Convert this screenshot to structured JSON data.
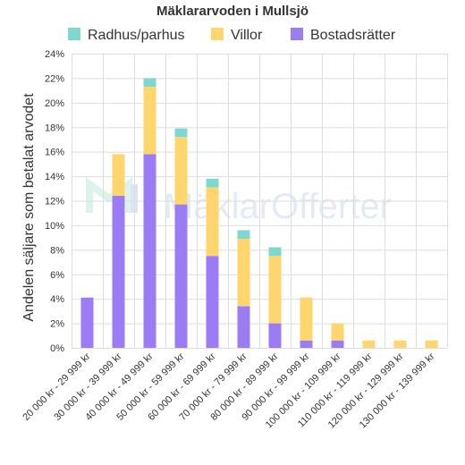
{
  "chart_data": {
    "type": "bar",
    "stacked": true,
    "title": "Mäklararvoden i Mullsjö",
    "ylabel": "Andelen säljare som betalat arvodet",
    "xlabel": "",
    "ylim": [
      0,
      24
    ],
    "yticks": [
      "0%",
      "2%",
      "4%",
      "6%",
      "8%",
      "10%",
      "12%",
      "14%",
      "16%",
      "18%",
      "20%",
      "22%",
      "24%"
    ],
    "grid": true,
    "legend_placement": "top",
    "categories": [
      "20 000 kr - 29 999 kr",
      "30 000 kr - 39 999 kr",
      "40 000 kr - 49 999 kr",
      "50 000 kr - 59 999 kr",
      "60 000 kr - 69 999 kr",
      "70 000 kr - 79 999 kr",
      "80 000 kr - 89 999 kr",
      "90 000 kr - 99 999 kr",
      "100 000 kr - 109 999 kr",
      "110 000 kr - 119 999 kr",
      "120 000 kr - 129 999 kr",
      "130 000 kr - 139 999 kr"
    ],
    "series": [
      {
        "name": "Bostadsrätter",
        "color": "#9b7cf4",
        "values": [
          4.1,
          12.4,
          15.8,
          11.7,
          7.5,
          3.4,
          2.0,
          0.6,
          0.6,
          0,
          0,
          0
        ]
      },
      {
        "name": "Villor",
        "color": "#ffd66e",
        "values": [
          0,
          3.4,
          5.5,
          5.5,
          5.6,
          5.5,
          5.5,
          3.5,
          1.4,
          0.6,
          0.6,
          0.6
        ]
      },
      {
        "name": "Radhus/parhus",
        "color": "#7ed8d0",
        "values": [
          0,
          0,
          0.7,
          0.7,
          0.7,
          0.7,
          0.7,
          0,
          0,
          0,
          0,
          0
        ]
      }
    ],
    "legend_order": [
      "Radhus/parhus",
      "Villor",
      "Bostadsrätter"
    ],
    "watermark": "MäklarOfferter"
  }
}
